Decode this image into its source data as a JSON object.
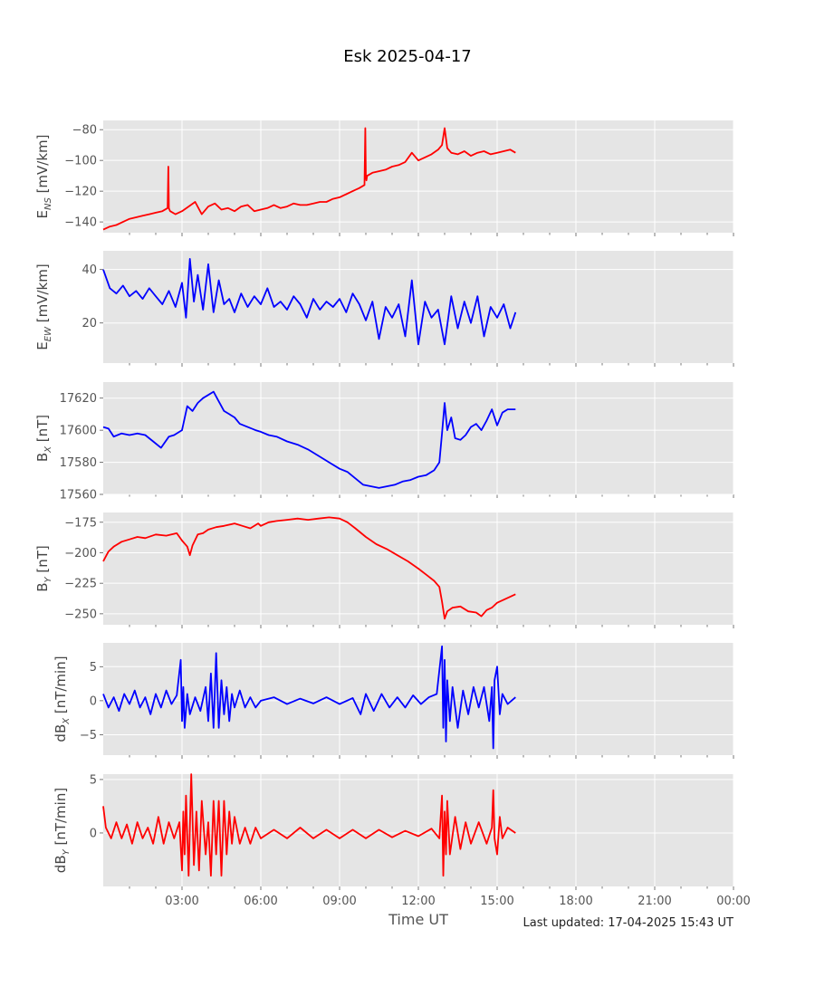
{
  "title": "Esk 2025-04-17",
  "footer": "Last updated: 17-04-2025 15:43 UT",
  "chart_data": {
    "type": "line",
    "title": "Esk 2025-04-17",
    "xlabel": "Time UT",
    "x_unit": "hours UT",
    "xlim": [
      0,
      24
    ],
    "x_ticks": [
      {
        "value": 3,
        "label": "03:00"
      },
      {
        "value": 6,
        "label": "06:00"
      },
      {
        "value": 9,
        "label": "09:00"
      },
      {
        "value": 12,
        "label": "12:00"
      },
      {
        "value": 15,
        "label": "15:00"
      },
      {
        "value": 18,
        "label": "18:00"
      },
      {
        "value": 21,
        "label": "21:00"
      },
      {
        "value": 24,
        "label": "00:00"
      }
    ],
    "background": "#e5e5e5",
    "grid": true,
    "panels": [
      {
        "ylabel_base": "E",
        "ylabel_sub": "NS",
        "ylabel_unit": " [mV/km]",
        "color": "#ff0000",
        "ylim": [
          -147,
          -74
        ],
        "yticks": [
          -80,
          -100,
          -120,
          -140
        ],
        "ytick_labels": [
          "−80",
          "−100",
          "−120",
          "−140"
        ],
        "series": {
          "x": [
            0,
            0.25,
            0.5,
            0.75,
            1,
            1.25,
            1.5,
            1.75,
            2,
            2.25,
            2.45,
            2.48,
            2.5,
            2.52,
            2.55,
            2.75,
            3,
            3.25,
            3.5,
            3.75,
            4,
            4.25,
            4.5,
            4.75,
            5,
            5.25,
            5.5,
            5.75,
            6,
            6.25,
            6.5,
            6.75,
            7,
            7.25,
            7.5,
            7.75,
            8,
            8.25,
            8.5,
            8.75,
            9,
            9.25,
            9.5,
            9.75,
            9.95,
            9.98,
            10,
            10.02,
            10.05,
            10.25,
            10.5,
            10.75,
            11,
            11.25,
            11.5,
            11.75,
            12,
            12.25,
            12.5,
            12.75,
            12.9,
            13,
            13.1,
            13.25,
            13.5,
            13.75,
            14,
            14.25,
            14.5,
            14.75,
            15,
            15.25,
            15.5,
            15.7
          ],
          "y": [
            -145,
            -143,
            -142,
            -140,
            -138,
            -137,
            -136,
            -135,
            -134,
            -133,
            -131,
            -104,
            -131,
            -132,
            -133,
            -135,
            -133,
            -130,
            -127,
            -135,
            -130,
            -128,
            -132,
            -131,
            -133,
            -130,
            -129,
            -133,
            -132,
            -131,
            -129,
            -131,
            -130,
            -128,
            -129,
            -129,
            -128,
            -127,
            -127,
            -125,
            -124,
            -122,
            -120,
            -118,
            -116,
            -79,
            -110,
            -113,
            -110,
            -108,
            -107,
            -106,
            -104,
            -103,
            -101,
            -95,
            -100,
            -98,
            -96,
            -93,
            -90,
            -79,
            -92,
            -95,
            -96,
            -94,
            -97,
            -95,
            -94,
            -96,
            -95,
            -94,
            -93,
            -95
          ]
        }
      },
      {
        "ylabel_base": "E",
        "ylabel_sub": "EW",
        "ylabel_unit": " [mV/km]",
        "color": "#0000ff",
        "ylim": [
          5,
          47
        ],
        "yticks": [
          20,
          40
        ],
        "ytick_labels": [
          "20",
          "40"
        ],
        "series": {
          "x": [
            0,
            0.25,
            0.5,
            0.75,
            1,
            1.25,
            1.5,
            1.75,
            2,
            2.25,
            2.5,
            2.75,
            3,
            3.15,
            3.3,
            3.45,
            3.6,
            3.8,
            4,
            4.2,
            4.4,
            4.6,
            4.8,
            5,
            5.25,
            5.5,
            5.75,
            6,
            6.25,
            6.5,
            6.75,
            7,
            7.25,
            7.5,
            7.75,
            8,
            8.25,
            8.5,
            8.75,
            9,
            9.25,
            9.5,
            9.75,
            10,
            10.25,
            10.5,
            10.75,
            11,
            11.25,
            11.5,
            11.75,
            12,
            12.25,
            12.5,
            12.75,
            13,
            13.25,
            13.5,
            13.75,
            14,
            14.25,
            14.5,
            14.75,
            15,
            15.25,
            15.5,
            15.7
          ],
          "y": [
            40,
            33,
            31,
            34,
            30,
            32,
            29,
            33,
            30,
            27,
            32,
            26,
            35,
            22,
            44,
            28,
            38,
            25,
            42,
            24,
            36,
            27,
            29,
            24,
            31,
            26,
            30,
            27,
            33,
            26,
            28,
            25,
            30,
            27,
            22,
            29,
            25,
            28,
            26,
            29,
            24,
            31,
            27,
            21,
            28,
            14,
            26,
            22,
            27,
            15,
            36,
            12,
            28,
            22,
            25,
            12,
            30,
            18,
            28,
            20,
            30,
            15,
            26,
            22,
            27,
            18,
            24
          ]
        }
      },
      {
        "ylabel_base": "B",
        "ylabel_sub": "X",
        "ylabel_unit": " [nT]",
        "color": "#0000ff",
        "ylim": [
          17560,
          17630
        ],
        "yticks": [
          17560,
          17580,
          17600,
          17620
        ],
        "ytick_labels": [
          "17560",
          "17580",
          "17600",
          "17620"
        ],
        "series": {
          "x": [
            0,
            0.2,
            0.4,
            0.7,
            1,
            1.3,
            1.6,
            1.9,
            2.2,
            2.5,
            2.7,
            2.9,
            3.0,
            3.2,
            3.4,
            3.6,
            3.8,
            4.0,
            4.2,
            4.4,
            4.6,
            4.8,
            5.0,
            5.2,
            5.5,
            5.8,
            6.0,
            6.3,
            6.6,
            7.0,
            7.4,
            7.8,
            8.2,
            8.6,
            9.0,
            9.3,
            9.6,
            9.9,
            10.2,
            10.5,
            10.8,
            11.1,
            11.4,
            11.7,
            12.0,
            12.3,
            12.6,
            12.8,
            12.9,
            13.0,
            13.1,
            13.25,
            13.4,
            13.6,
            13.8,
            14.0,
            14.2,
            14.4,
            14.6,
            14.8,
            15.0,
            15.2,
            15.4,
            15.7
          ],
          "y": [
            17602,
            17601,
            17596,
            17598,
            17597,
            17598,
            17597,
            17593,
            17589,
            17596,
            17597,
            17599,
            17600,
            17615,
            17612,
            17617,
            17620,
            17622,
            17624,
            17618,
            17612,
            17610,
            17608,
            17604,
            17602,
            17600,
            17599,
            17597,
            17596,
            17593,
            17591,
            17588,
            17584,
            17580,
            17576,
            17574,
            17570,
            17566,
            17565,
            17564,
            17565,
            17566,
            17568,
            17569,
            17571,
            17572,
            17575,
            17580,
            17598,
            17617,
            17600,
            17608,
            17595,
            17594,
            17597,
            17602,
            17604,
            17600,
            17606,
            17613,
            17603,
            17611,
            17613,
            17613
          ]
        }
      },
      {
        "ylabel_base": "B",
        "ylabel_sub": "Y",
        "ylabel_unit": " [nT]",
        "color": "#ff0000",
        "ylim": [
          -259,
          -167
        ],
        "yticks": [
          -175,
          -200,
          -225,
          -250
        ],
        "ytick_labels": [
          "−175",
          "−200",
          "−225",
          "−250"
        ],
        "series": {
          "x": [
            0,
            0.2,
            0.4,
            0.7,
            1.0,
            1.3,
            1.6,
            2.0,
            2.4,
            2.8,
            3.0,
            3.2,
            3.3,
            3.4,
            3.6,
            3.8,
            4.0,
            4.3,
            4.6,
            5.0,
            5.3,
            5.6,
            5.9,
            6.0,
            6.3,
            6.6,
            7.0,
            7.4,
            7.8,
            8.2,
            8.6,
            9.0,
            9.3,
            9.6,
            10.0,
            10.4,
            10.8,
            11.2,
            11.6,
            12.0,
            12.3,
            12.6,
            12.8,
            12.9,
            13.0,
            13.1,
            13.3,
            13.6,
            13.9,
            14.2,
            14.4,
            14.6,
            14.8,
            15.0,
            15.3,
            15.7
          ],
          "y": [
            -207,
            -199,
            -195,
            -191,
            -189,
            -187,
            -188,
            -185,
            -186,
            -184,
            -190,
            -195,
            -202,
            -194,
            -185,
            -184,
            -181,
            -179,
            -178,
            -176,
            -178,
            -180,
            -176,
            -178,
            -175,
            -174,
            -173,
            -172,
            -173,
            -172,
            -171,
            -172,
            -175,
            -180,
            -187,
            -193,
            -197,
            -202,
            -207,
            -213,
            -218,
            -223,
            -228,
            -240,
            -254,
            -248,
            -245,
            -244,
            -248,
            -249,
            -252,
            -247,
            -245,
            -241,
            -238,
            -234
          ]
        }
      },
      {
        "ylabel_base": "dB",
        "ylabel_sub": "X",
        "ylabel_unit": " [nT/min]",
        "color": "#0000ff",
        "ylim": [
          -8,
          8.5
        ],
        "yticks": [
          5,
          0,
          -5
        ],
        "ytick_labels": [
          "5",
          "0",
          "−5"
        ],
        "series": {
          "x": [
            0,
            0.2,
            0.4,
            0.6,
            0.8,
            1.0,
            1.2,
            1.4,
            1.6,
            1.8,
            2.0,
            2.2,
            2.4,
            2.6,
            2.8,
            2.95,
            3.0,
            3.05,
            3.1,
            3.2,
            3.3,
            3.5,
            3.7,
            3.9,
            4.0,
            4.1,
            4.2,
            4.3,
            4.4,
            4.5,
            4.6,
            4.7,
            4.8,
            4.9,
            5.0,
            5.2,
            5.4,
            5.6,
            5.8,
            6.0,
            6.5,
            7.0,
            7.5,
            8.0,
            8.5,
            9.0,
            9.5,
            9.8,
            10.0,
            10.3,
            10.6,
            10.9,
            11.2,
            11.5,
            11.8,
            12.1,
            12.4,
            12.7,
            12.9,
            12.95,
            13.0,
            13.05,
            13.1,
            13.2,
            13.3,
            13.5,
            13.7,
            13.9,
            14.1,
            14.3,
            14.5,
            14.7,
            14.8,
            14.85,
            14.9,
            15.0,
            15.1,
            15.2,
            15.4,
            15.7
          ],
          "y": [
            1,
            -1,
            0.5,
            -1.5,
            1,
            -0.5,
            1.5,
            -1,
            0.5,
            -2,
            1,
            -1,
            1.5,
            -0.5,
            0.8,
            6,
            -3,
            2,
            -4,
            1,
            -2,
            0.5,
            -1.5,
            2,
            -3,
            4,
            -4,
            7,
            -4,
            3,
            -2,
            2,
            -3,
            1,
            -1,
            1.5,
            -1,
            0.5,
            -1,
            0,
            0.5,
            -0.5,
            0.3,
            -0.4,
            0.5,
            -0.5,
            0.4,
            -2,
            1,
            -1.5,
            1,
            -1,
            0.5,
            -1,
            0.8,
            -0.5,
            0.5,
            1,
            8,
            -4,
            6,
            -6,
            3,
            -3,
            2,
            -4,
            1.5,
            -2,
            2,
            -1,
            2,
            -3,
            2,
            -7,
            3,
            5,
            -2,
            1,
            -0.5,
            0.5
          ]
        }
      },
      {
        "ylabel_base": "dB",
        "ylabel_sub": "Y",
        "ylabel_unit": " [nT/min]",
        "color": "#ff0000",
        "ylim": [
          -5,
          5.5
        ],
        "yticks": [
          5,
          0
        ],
        "ytick_labels": [
          "5",
          "0"
        ],
        "series": {
          "x": [
            0,
            0.1,
            0.3,
            0.5,
            0.7,
            0.9,
            1.1,
            1.3,
            1.5,
            1.7,
            1.9,
            2.1,
            2.3,
            2.5,
            2.7,
            2.9,
            3.0,
            3.05,
            3.1,
            3.15,
            3.25,
            3.35,
            3.45,
            3.55,
            3.65,
            3.75,
            3.9,
            4.0,
            4.1,
            4.2,
            4.3,
            4.4,
            4.5,
            4.6,
            4.7,
            4.8,
            4.9,
            5.0,
            5.2,
            5.4,
            5.6,
            5.8,
            6.0,
            6.5,
            7.0,
            7.5,
            8.0,
            8.5,
            9.0,
            9.5,
            10.0,
            10.5,
            11.0,
            11.5,
            12.0,
            12.5,
            12.8,
            12.9,
            12.95,
            13.0,
            13.05,
            13.1,
            13.2,
            13.4,
            13.6,
            13.8,
            14.0,
            14.3,
            14.6,
            14.8,
            14.85,
            14.9,
            15.0,
            15.1,
            15.2,
            15.4,
            15.7
          ],
          "y": [
            2.5,
            0.5,
            -0.5,
            1,
            -0.5,
            0.8,
            -1,
            1,
            -0.5,
            0.5,
            -1,
            1.5,
            -1,
            1,
            -0.5,
            1,
            -3.5,
            2,
            -2,
            3.5,
            -4,
            5.5,
            -3,
            2,
            -3.5,
            3,
            -2,
            1,
            -4,
            3,
            -2,
            3,
            -4,
            3,
            -2,
            2,
            -1,
            1.5,
            -1,
            0.5,
            -1,
            0.5,
            -0.5,
            0.3,
            -0.5,
            0.5,
            -0.5,
            0.3,
            -0.5,
            0.3,
            -0.5,
            0.3,
            -0.4,
            0.2,
            -0.3,
            0.4,
            -0.5,
            3.5,
            -4,
            2,
            -2,
            3,
            -2,
            1.5,
            -1.5,
            1,
            -1,
            1,
            -1,
            0.5,
            4,
            -0.5,
            -2,
            1.5,
            -0.5,
            0.5,
            0
          ]
        }
      }
    ]
  }
}
